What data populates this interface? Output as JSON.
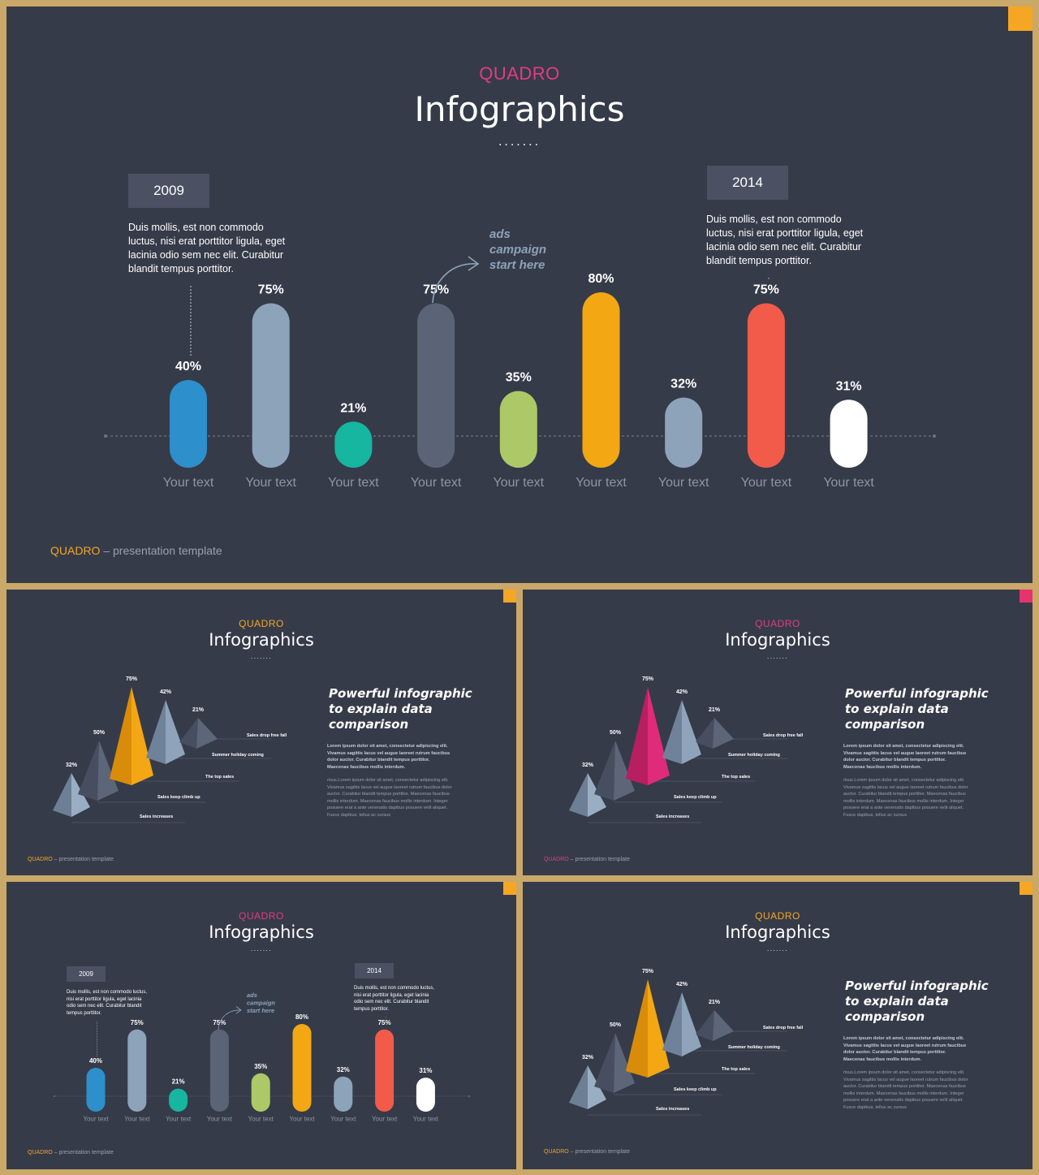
{
  "colors": {
    "background": "#363b49",
    "frame": "#c9a86a",
    "brand_pink": "#e23c7f",
    "brand_orange": "#f5a623",
    "corner_orange": "#f5a623",
    "corner_pink": "#e5336f",
    "footer_grey": "#9aa0ad"
  },
  "footer": {
    "brand": "QUADRO",
    "text": " – presentation template"
  },
  "main": {
    "brand": "QUADRO",
    "title": "Infographics",
    "dots": ".......",
    "year_left": "2009",
    "year_right": "2014",
    "desc_left": "Duis mollis, est non commodo luctus, nisi erat porttitor ligula, eget lacinia odio sem nec elit. Curabitur blandit tempus porttitor.",
    "desc_right": "Duis mollis, est non commodo luctus, nisi erat porttitor ligula, eget lacinia odio sem nec elit. Curabitur blandit tempus porttitor.",
    "annotation": [
      "ads",
      "campaign",
      "start here"
    ]
  },
  "chart_data": {
    "type": "bar",
    "categories": [
      "Your text",
      "Your text",
      "Your text",
      "Your text",
      "Your text",
      "Your text",
      "Your text",
      "Your text",
      "Your text"
    ],
    "values": [
      40,
      75,
      21,
      75,
      35,
      80,
      32,
      75,
      31
    ],
    "labels": [
      "40%",
      "75%",
      "21%",
      "75%",
      "35%",
      "80%",
      "32%",
      "75%",
      "31%"
    ],
    "colors": [
      "#2d8fcb",
      "#8da3ba",
      "#16b6a0",
      "#5b6377",
      "#adc867",
      "#f3a712",
      "#8da3ba",
      "#f25a4a",
      "#ffffff"
    ]
  },
  "pyramid": {
    "brand": "QUADRO",
    "title": "Infographics",
    "dots": ".......",
    "heading": [
      "Powerful infographic",
      "to explain data",
      "comparison"
    ],
    "bold_lines": [
      "Lorem ipsum dolor sit amet, consectetur adipiscing elit.",
      "Vivamus sagittis lacus vel augue laoreet rutrum faucibus",
      "dolor auctor. Curabitur blandit tempus porttitor.",
      "Maecenas faucibus mollis interdum."
    ],
    "body_lines": [
      "risus.Lorem ipsum dolor sit amet, consectetur adipiscing elit.",
      "Vivamus sagittis lacus vel augue laoreet rutrum faucibus dolor",
      "auctor. Curabitur blandit tempus porttitor. Maecenas faucibus",
      "mollis interdum. Maecenas faucibus mollis interdum. Integer",
      "posuere erat a ante venenatis dapibus posuere velit aliquet.",
      "Fusce dapibus, tellus ac cursus"
    ],
    "values": [
      "32%",
      "50%",
      "75%",
      "42%",
      "21%"
    ],
    "captions": [
      "Sales drop free fall",
      "Summer holiday coming",
      "The top sales",
      "Sales keep climb up",
      "Sales increases"
    ],
    "highlight_orange": "#f3a712",
    "highlight_pink": "#e02a7a"
  }
}
